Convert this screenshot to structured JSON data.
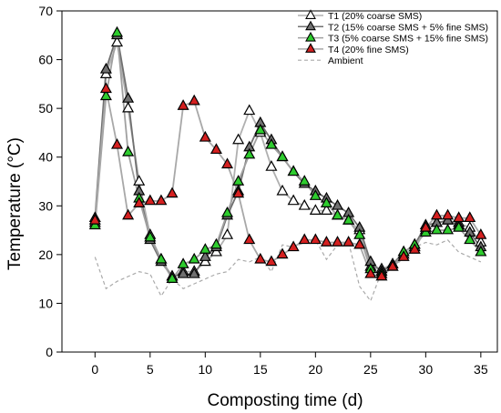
{
  "chart_data": {
    "type": "line",
    "xlabel": "Composting time (d)",
    "ylabel": "Temperature (°C)",
    "xlim": [
      -3,
      36.5
    ],
    "ylim": [
      0,
      70
    ],
    "xticks": [
      0,
      5,
      10,
      15,
      20,
      25,
      30,
      35
    ],
    "yticks": [
      0,
      10,
      20,
      30,
      40,
      50,
      60,
      70
    ],
    "grid": false,
    "legend_position": "top-right",
    "series": [
      {
        "name": "T1 (20% coarse SMS)",
        "color": "#b0b0b0",
        "marker": "triangle",
        "marker_fill": "#ffffff",
        "x": [
          0,
          1,
          2,
          3,
          4,
          5,
          6,
          7,
          8,
          9,
          10,
          11,
          12,
          13,
          14,
          15,
          16,
          17,
          18,
          19,
          20,
          21,
          22,
          23,
          24,
          25,
          26,
          27,
          28,
          29,
          30,
          31,
          32,
          33,
          34,
          35
        ],
        "y": [
          26.5,
          57,
          63.5,
          50,
          35,
          24,
          19,
          15.5,
          16.5,
          16.5,
          18.5,
          20.5,
          24,
          43.5,
          49.5,
          45,
          38,
          33,
          31,
          30,
          29,
          29,
          28,
          27,
          25,
          17.5,
          17,
          18,
          20,
          21.5,
          25,
          26.5,
          27,
          26.5,
          25.5,
          22.5
        ]
      },
      {
        "name": "T2 (15% coarse SMS + 5% fine SMS)",
        "color": "#707070",
        "marker": "triangle",
        "marker_fill": "#707070",
        "x": [
          0,
          1,
          2,
          3,
          4,
          5,
          6,
          7,
          8,
          9,
          10,
          11,
          12,
          13,
          14,
          15,
          16,
          17,
          18,
          19,
          20,
          21,
          22,
          23,
          24,
          25,
          26,
          27,
          28,
          29,
          30,
          31,
          32,
          33,
          34,
          35
        ],
        "y": [
          27.5,
          58,
          65,
          52,
          33,
          23,
          18.5,
          15.5,
          16,
          16,
          19.5,
          21.5,
          28,
          33,
          42,
          47,
          43.5,
          40,
          37,
          34.5,
          33,
          31.5,
          30,
          28.5,
          25.5,
          18.5,
          16.5,
          18,
          20.5,
          22,
          26,
          26.5,
          27,
          26,
          24.5,
          21.5
        ]
      },
      {
        "name": "T3 (5% coarse SMS + 15% fine SMS)",
        "color": "#a0a0a0",
        "marker": "triangle",
        "marker_fill": "#2ecc2e",
        "x": [
          0,
          1,
          2,
          3,
          4,
          5,
          6,
          7,
          8,
          9,
          10,
          11,
          12,
          13,
          14,
          15,
          16,
          17,
          18,
          19,
          20,
          21,
          22,
          23,
          24,
          25,
          26,
          27,
          28,
          29,
          30,
          31,
          32,
          33,
          34,
          35
        ],
        "y": [
          26,
          52.5,
          65.5,
          41,
          31.5,
          23.5,
          19,
          15,
          18,
          19,
          21,
          22,
          28.5,
          35,
          40.5,
          45.5,
          42.5,
          40,
          37,
          35,
          32,
          30.5,
          28,
          27,
          24,
          17,
          16,
          17.5,
          20.5,
          22,
          24.5,
          25,
          25,
          25.5,
          23,
          20.5
        ]
      },
      {
        "name": "T4 (20% fine SMS)",
        "color": "#a8a8a8",
        "marker": "triangle",
        "marker_fill": "#d42020",
        "x": [
          0,
          1,
          2,
          3,
          4,
          5,
          6,
          7,
          8,
          9,
          10,
          11,
          12,
          13,
          14,
          15,
          16,
          17,
          18,
          19,
          20,
          21,
          22,
          23,
          24,
          25,
          26,
          27,
          28,
          29,
          30,
          31,
          32,
          33,
          34,
          35
        ],
        "y": [
          27,
          54,
          42.5,
          28,
          30.5,
          31,
          31,
          32.5,
          50.5,
          51.5,
          44,
          41.5,
          38.5,
          32.5,
          23,
          19,
          18.5,
          20,
          21.5,
          23,
          23,
          22.5,
          22.5,
          22.5,
          22,
          16,
          15.5,
          17.5,
          19.5,
          21,
          25.5,
          28,
          28,
          27.5,
          27.5,
          24
        ]
      },
      {
        "name": "Ambient",
        "color": "#aaaaaa",
        "marker": "none",
        "dashed": true,
        "x": [
          0,
          1,
          2,
          3,
          4,
          5,
          6,
          7,
          8,
          9,
          10,
          11,
          12,
          13,
          14,
          15,
          16,
          17,
          18,
          19,
          20,
          21,
          22,
          23,
          24,
          25,
          26,
          27,
          28,
          29,
          30,
          31,
          32,
          33,
          34,
          35
        ],
        "y": [
          19.5,
          13,
          14.5,
          15.5,
          16.5,
          16,
          11.5,
          15,
          13,
          14,
          15,
          16,
          16.5,
          19,
          18.5,
          19.5,
          16.5,
          22,
          21.5,
          22.5,
          23,
          19,
          22,
          22.5,
          13.5,
          10.5,
          16.5,
          17,
          19.5,
          21.5,
          22.5,
          22,
          23,
          20.5,
          19.5,
          18.5
        ]
      }
    ]
  }
}
